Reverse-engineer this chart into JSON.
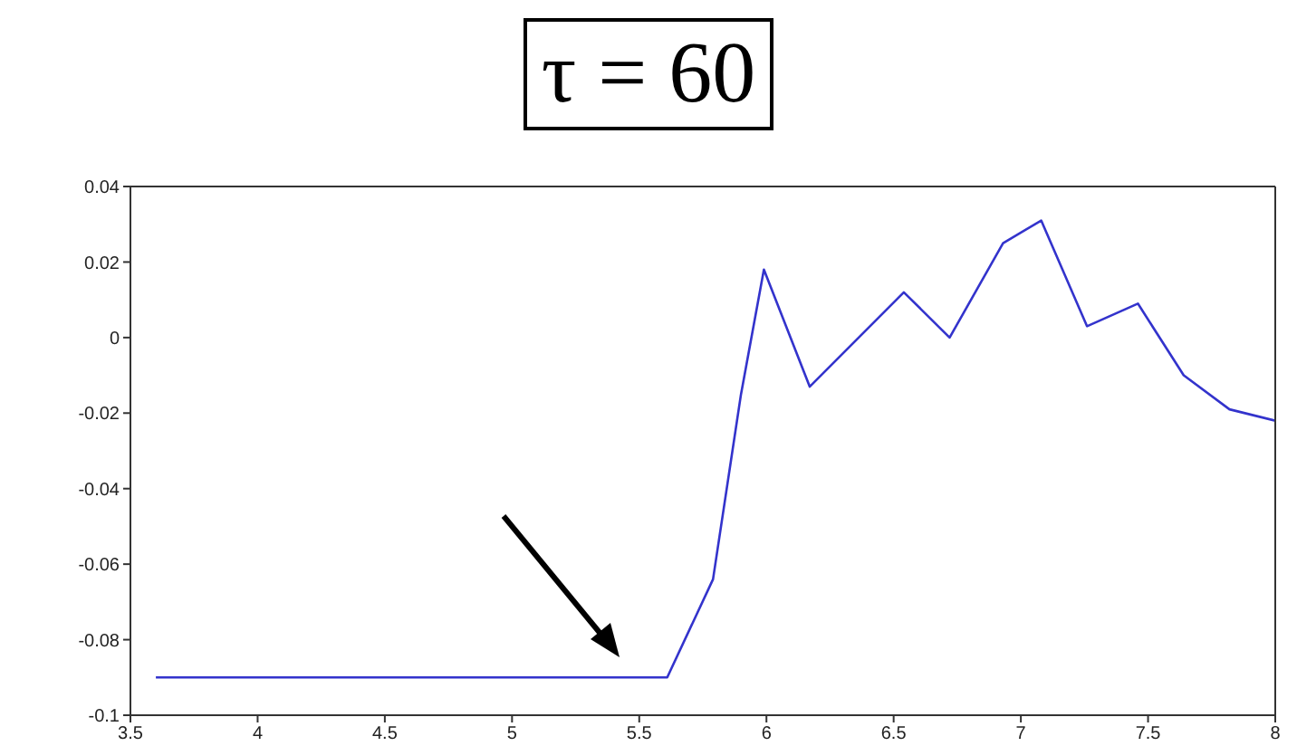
{
  "chart_data": {
    "type": "line",
    "title": "τ = 60",
    "x": [
      3.6,
      5.61,
      5.79,
      5.9,
      5.99,
      6.17,
      6.54,
      6.72,
      6.93,
      7.08,
      7.26,
      7.46,
      7.64,
      7.82,
      8.0
    ],
    "series": [
      {
        "color": "#3333cc",
        "values": [
          -0.09,
          -0.09,
          -0.064,
          -0.015,
          0.018,
          -0.013,
          0.012,
          0,
          0.025,
          0.031,
          0.003,
          0.009,
          -0.01,
          -0.019,
          -0.022
        ]
      }
    ],
    "xlim": [
      3.5,
      8
    ],
    "xticks": [
      3.5,
      4,
      4.5,
      5,
      5.5,
      6,
      6.5,
      7,
      7.5,
      8
    ],
    "ylim": [
      -0.1,
      0.04
    ],
    "yticks": [
      -0.1,
      -0.08,
      -0.06,
      -0.04,
      -0.02,
      0,
      0.02,
      0.04
    ],
    "grid": false,
    "legend": false,
    "marker": "none",
    "line_style": "solid"
  }
}
